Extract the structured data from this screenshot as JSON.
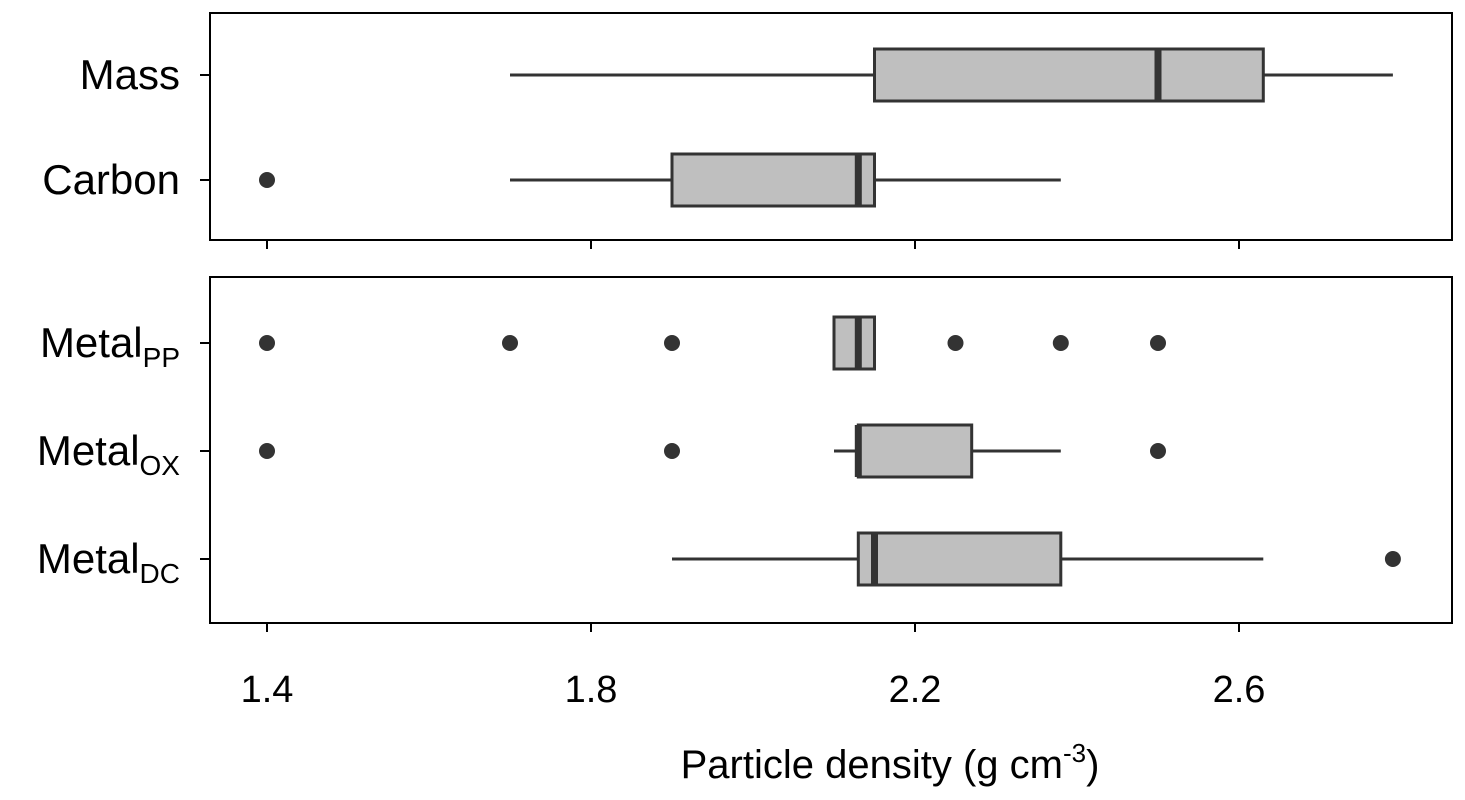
{
  "chart_data": {
    "type": "boxplot",
    "title": "",
    "xlabel": "Particle density (g cm",
    "xlabel_sup": "-3",
    "xlabel_end": ")",
    "xlim": [
      1.33,
      2.87
    ],
    "xticks": [
      1.4,
      1.8,
      2.2,
      2.6
    ],
    "xtick_labels": [
      "1.4",
      "1.8",
      "2.2",
      "2.6"
    ],
    "grid": false,
    "box_color": "#bfbfbf",
    "line_color": "#333333",
    "panels": [
      {
        "series": [
          {
            "label": "Mass",
            "sub": "",
            "whisker_low": 1.7,
            "q1": 2.15,
            "median": 2.5,
            "q3": 2.63,
            "whisker_high": 2.79,
            "outliers": []
          },
          {
            "label": "Carbon",
            "sub": "",
            "whisker_low": 1.7,
            "q1": 1.9,
            "median": 2.13,
            "q3": 2.15,
            "whisker_high": 2.38,
            "outliers": [
              1.4
            ]
          }
        ]
      },
      {
        "series": [
          {
            "label": "Metal",
            "sub": "PP",
            "whisker_low": 2.1,
            "q1": 2.1,
            "median": 2.13,
            "q3": 2.15,
            "whisker_high": 2.15,
            "outliers": [
              1.4,
              1.7,
              1.9,
              2.25,
              2.38,
              2.5
            ]
          },
          {
            "label": "Metal",
            "sub": "OX",
            "whisker_low": 2.1,
            "q1": 2.13,
            "median": 2.13,
            "q3": 2.27,
            "whisker_high": 2.38,
            "outliers": [
              1.4,
              1.9,
              2.5
            ]
          },
          {
            "label": "Metal",
            "sub": "DC",
            "whisker_low": 1.9,
            "q1": 2.13,
            "median": 2.15,
            "q3": 2.38,
            "whisker_high": 2.63,
            "outliers": [
              2.79
            ]
          }
        ]
      }
    ]
  }
}
